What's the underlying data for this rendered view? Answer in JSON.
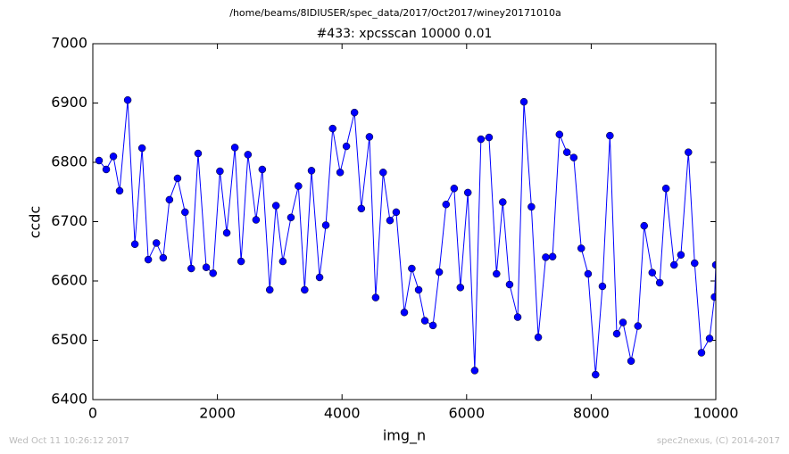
{
  "chart_data": {
    "type": "line",
    "suptitle": "/home/beams/8IDIUSER/spec_data/2017/Oct2017/winey20171010a",
    "title": "#433: xpcsscan 10000 0.01",
    "xlabel": "img_n",
    "ylabel": "ccdc",
    "footer_left": "Wed Oct 11 10:26:12 2017",
    "footer_right": "spec2nexus, (C) 2014-2017",
    "xlim": [
      0,
      10000
    ],
    "xticks": [
      0,
      2000,
      4000,
      6000,
      8000,
      10000
    ],
    "ylim": [
      6400,
      7000
    ],
    "yticks": [
      6400,
      6500,
      6600,
      6700,
      6800,
      6900,
      7000
    ],
    "series": [
      {
        "name": "ccdc",
        "color": "#0000ff",
        "x": [
          100,
          215,
          330,
          430,
          560,
          675,
          790,
          890,
          1020,
          1130,
          1230,
          1360,
          1480,
          1580,
          1690,
          1820,
          1930,
          2040,
          2150,
          2280,
          2380,
          2490,
          2620,
          2720,
          2840,
          2940,
          3050,
          3180,
          3300,
          3400,
          3510,
          3640,
          3740,
          3850,
          3970,
          4070,
          4200,
          4310,
          4440,
          4540,
          4660,
          4770,
          4870,
          5000,
          5120,
          5230,
          5330,
          5460,
          5560,
          5670,
          5800,
          5900,
          6020,
          6130,
          6230,
          6360,
          6480,
          6580,
          6690,
          6820,
          6920,
          7040,
          7150,
          7270,
          7380,
          7490,
          7610,
          7720,
          7840,
          7950,
          8070,
          8180,
          8300,
          8410,
          8510,
          8640,
          8750,
          8850,
          8980,
          9100,
          9200,
          9330,
          9440,
          9560,
          9660,
          9770,
          9900,
          9980,
          10000
        ],
        "values": [
          6803,
          6788,
          6810,
          6752,
          6905,
          6662,
          6824,
          6636,
          6664,
          6639,
          6737,
          6773,
          6716,
          6621,
          6815,
          6623,
          6613,
          6785,
          6681,
          6825,
          6633,
          6813,
          6703,
          6788,
          6585,
          6727,
          6633,
          6707,
          6760,
          6585,
          6786,
          6606,
          6694,
          6857,
          6783,
          6827,
          6884,
          6722,
          6843,
          6572,
          6783,
          6702,
          6716,
          6547,
          6621,
          6585,
          6533,
          6525,
          6615,
          6729,
          6756,
          6589,
          6749,
          6449,
          6839,
          6842,
          6612,
          6733,
          6594,
          6539,
          6902,
          6725,
          6505,
          6640,
          6641,
          6847,
          6817,
          6808,
          6655,
          6612,
          6442,
          6591,
          6845,
          6511,
          6530,
          6465,
          6524,
          6693,
          6614,
          6597,
          6756,
          6627,
          6644,
          6817,
          6630,
          6479,
          6503,
          6573,
          6627
        ]
      }
    ]
  }
}
